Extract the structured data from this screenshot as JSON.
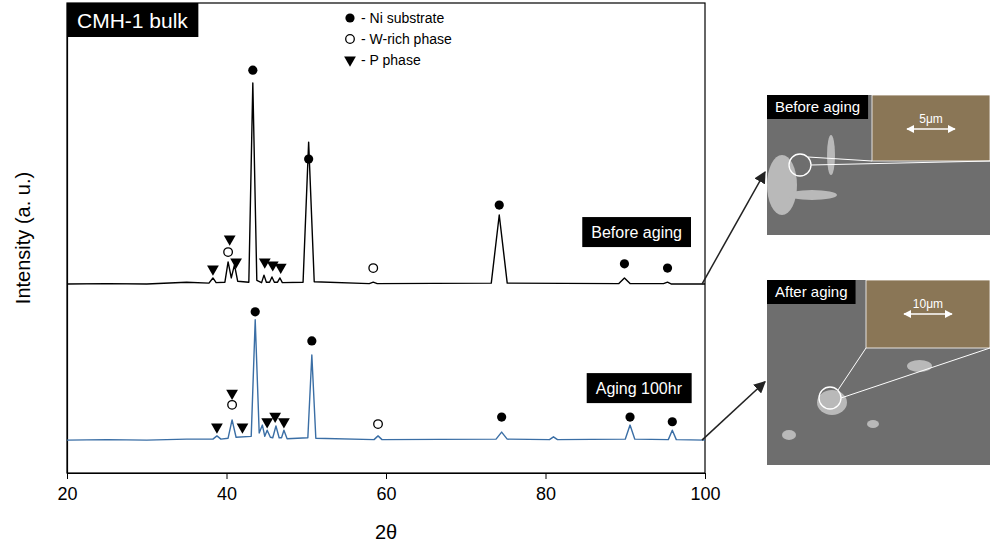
{
  "chart_data": {
    "type": "line",
    "title": "CMH-1 bulk",
    "x_label": "2θ",
    "y_label": "Intensity (a. u.)",
    "xlim": [
      20,
      100
    ],
    "xticks": [
      20,
      40,
      60,
      80,
      100
    ],
    "ylim": [
      0,
      100
    ],
    "yticks": [],
    "tick_labels": "x",
    "legend": "top-right",
    "series": [
      {
        "name": "Before aging",
        "color": "#000000",
        "x": [
          20,
          25,
          30,
          35,
          37.8,
          38.3,
          38.7,
          39.8,
          40.2,
          40.6,
          41.0,
          41.4,
          42.8,
          43.3,
          43.8,
          44.4,
          44.7,
          45.0,
          45.4,
          45.7,
          46.0,
          46.4,
          46.7,
          47.0,
          49.6,
          50.3,
          51.0,
          57.9,
          58.4,
          58.9,
          73.2,
          74.2,
          75.2,
          89.2,
          89.9,
          90.6,
          94.8,
          95.3,
          95.8,
          100
        ],
        "values": [
          40.2,
          40.3,
          40.2,
          40.6,
          40.4,
          41.5,
          40.5,
          40.6,
          44.9,
          41.5,
          44.3,
          40.8,
          40.6,
          83.0,
          41.0,
          40.5,
          42.1,
          40.6,
          40.6,
          41.7,
          40.6,
          40.6,
          41.5,
          40.5,
          40.6,
          70.4,
          40.7,
          40.3,
          40.6,
          40.3,
          40.4,
          54.9,
          40.4,
          40.3,
          41.5,
          40.3,
          40.3,
          40.6,
          40.2,
          40.2
        ]
      },
      {
        "name": "Aging 100hr",
        "color": "#3a6ea5",
        "x": [
          20,
          25,
          30,
          35,
          38.3,
          38.8,
          39.3,
          40.2,
          40.7,
          41.2,
          43.1,
          43.6,
          44.1,
          44.5,
          44.8,
          45.1,
          45.5,
          45.8,
          46.2,
          46.6,
          46.9,
          47.2,
          47.6,
          50.2,
          50.7,
          51.2,
          58.5,
          59.0,
          59.5,
          73.8,
          74.5,
          75.2,
          80.5,
          81.0,
          81.5,
          90.0,
          90.6,
          91.2,
          95.4,
          95.9,
          96.4,
          100
        ],
        "values": [
          7.0,
          7.1,
          7.0,
          7.2,
          7.2,
          7.9,
          7.2,
          7.4,
          11.3,
          7.6,
          7.8,
          32.6,
          8.5,
          10.2,
          7.8,
          9.1,
          7.6,
          7.5,
          10.0,
          7.5,
          7.5,
          9.1,
          7.3,
          7.5,
          25.1,
          7.4,
          7.1,
          7.9,
          7.1,
          7.2,
          8.7,
          7.2,
          7.1,
          7.7,
          7.1,
          7.2,
          10.2,
          7.2,
          7.1,
          9.1,
          7.1,
          7.0
        ]
      }
    ],
    "phases": [
      {
        "name": "- Ni substrate",
        "marker": "circle",
        "color": "#000000",
        "x": [
          43.3,
          50.3,
          74.2,
          89.9,
          95.3,
          43.6,
          50.7,
          74.5,
          90.6,
          95.9
        ],
        "y": [
          85.7,
          66.8,
          57.0,
          44.5,
          43.6,
          34.3,
          28.1,
          11.9,
          11.9,
          10.9
        ]
      },
      {
        "name": "- W-rich phase",
        "marker": "circle-open",
        "color": "#000000",
        "x": [
          40.2,
          58.4,
          40.7,
          59.0
        ],
        "y": [
          47.0,
          43.6,
          14.5,
          10.4
        ]
      },
      {
        "name": "- P phase",
        "marker": "triangle-down",
        "color": "#000000",
        "x": [
          38.3,
          40.4,
          41.2,
          44.8,
          45.8,
          46.8,
          38.8,
          40.7,
          42.0,
          45.1,
          46.1,
          47.2
        ],
        "y": [
          43.4,
          49.8,
          44.9,
          44.9,
          44.3,
          43.8,
          9.8,
          17.0,
          9.8,
          10.9,
          12.1,
          10.9
        ]
      }
    ]
  },
  "insets": [
    {
      "label": "Before aging",
      "scale_bar": "5μm"
    },
    {
      "label": "After aging",
      "scale_bar": "10μm"
    }
  ]
}
